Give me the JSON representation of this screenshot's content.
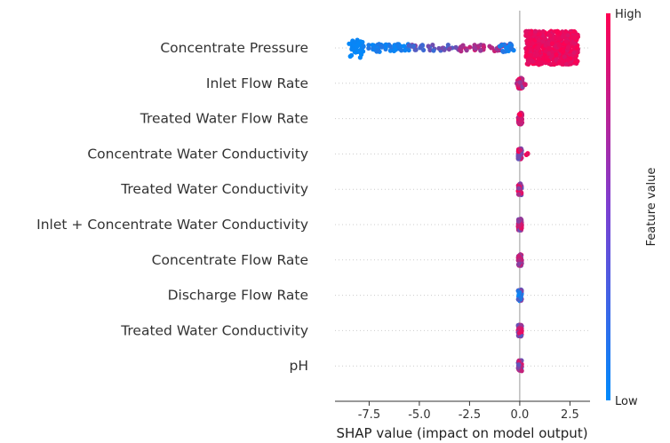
{
  "chart_data": {
    "type": "scatter",
    "subtype": "shap-beeswarm",
    "xlabel": "SHAP value (impact on model output)",
    "x_ticks": [
      -7.5,
      -5.0,
      -2.5,
      0.0,
      2.5
    ],
    "x_tick_labels": [
      "-7.5",
      "-5.0",
      "-2.5",
      "0.0",
      "2.5"
    ],
    "xlim": [
      -9.2,
      3.5
    ],
    "grid": false,
    "colorbar": {
      "title": "Feature value",
      "high_label": "High",
      "low_label": "Low",
      "low_color": "#008afb",
      "high_color": "#ff0052"
    },
    "features": [
      {
        "name": "Concentrate Pressure",
        "clusters": [
          {
            "x_min": -8.5,
            "x_max": -7.8,
            "count": 35,
            "spread": 0.55,
            "color_lo": 0.0,
            "color_hi": 0.05
          },
          {
            "x_min": -7.8,
            "x_max": -5.5,
            "count": 55,
            "spread": 0.22,
            "color_lo": 0.0,
            "color_hi": 0.15
          },
          {
            "x_min": -5.5,
            "x_max": -3.0,
            "count": 40,
            "spread": 0.18,
            "color_lo": 0.2,
            "color_hi": 0.55
          },
          {
            "x_min": -3.0,
            "x_max": -0.5,
            "count": 45,
            "spread": 0.2,
            "color_lo": 0.55,
            "color_hi": 0.85
          },
          {
            "x_min": -1.0,
            "x_max": -0.3,
            "count": 20,
            "spread": 0.25,
            "color_lo": 0.0,
            "color_hi": 0.2
          },
          {
            "x_min": 0.3,
            "x_max": 2.9,
            "count": 650,
            "spread": 0.95,
            "color_lo": 0.85,
            "color_hi": 1.0
          }
        ]
      },
      {
        "name": "Inlet Flow Rate",
        "clusters": [
          {
            "x_min": -0.1,
            "x_max": 0.15,
            "count": 60,
            "spread": 0.3,
            "color_lo": 0.5,
            "color_hi": 1.0
          },
          {
            "x_min": -0.3,
            "x_max": 0.3,
            "count": 6,
            "spread": 0.1,
            "color_lo": 0.6,
            "color_hi": 0.95
          }
        ]
      },
      {
        "name": "Treated Water Flow Rate",
        "clusters": [
          {
            "x_min": -0.08,
            "x_max": 0.12,
            "count": 60,
            "spread": 0.32,
            "color_lo": 0.6,
            "color_hi": 1.0
          }
        ]
      },
      {
        "name": "Concentrate Water Conductivity",
        "clusters": [
          {
            "x_min": -0.08,
            "x_max": 0.1,
            "count": 60,
            "spread": 0.32,
            "color_lo": 0.35,
            "color_hi": 1.0
          },
          {
            "x_min": 0.2,
            "x_max": 0.45,
            "count": 4,
            "spread": 0.05,
            "color_lo": 0.9,
            "color_hi": 1.0
          }
        ]
      },
      {
        "name": "Treated Water Conductivity",
        "clusters": [
          {
            "x_min": -0.08,
            "x_max": 0.1,
            "count": 60,
            "spread": 0.32,
            "color_lo": 0.3,
            "color_hi": 1.0
          }
        ]
      },
      {
        "name": "Inlet + Concentrate Water Conductivity",
        "clusters": [
          {
            "x_min": -0.08,
            "x_max": 0.1,
            "count": 60,
            "spread": 0.32,
            "color_lo": 0.4,
            "color_hi": 1.0
          }
        ]
      },
      {
        "name": "Concentrate Flow Rate",
        "clusters": [
          {
            "x_min": -0.08,
            "x_max": 0.1,
            "count": 60,
            "spread": 0.32,
            "color_lo": 0.45,
            "color_hi": 1.0
          }
        ]
      },
      {
        "name": "Discharge Flow Rate",
        "clusters": [
          {
            "x_min": -0.08,
            "x_max": 0.1,
            "count": 60,
            "spread": 0.32,
            "color_lo": 0.0,
            "color_hi": 0.6
          }
        ]
      },
      {
        "name": "Treated Water Conductivity",
        "clusters": [
          {
            "x_min": -0.08,
            "x_max": 0.1,
            "count": 60,
            "spread": 0.32,
            "color_lo": 0.3,
            "color_hi": 1.0
          }
        ]
      },
      {
        "name": "pH",
        "clusters": [
          {
            "x_min": -0.08,
            "x_max": 0.1,
            "count": 60,
            "spread": 0.32,
            "color_lo": 0.2,
            "color_hi": 0.9
          }
        ]
      }
    ]
  }
}
